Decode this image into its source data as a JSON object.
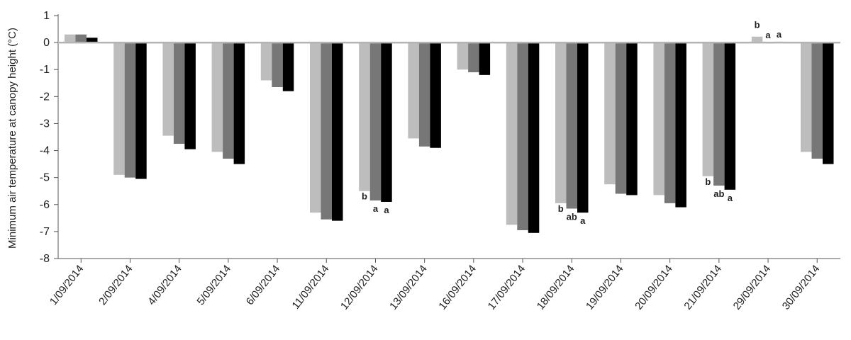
{
  "chart_data": {
    "type": "bar",
    "ylabel": "Minimum air temperature at canopy height (°C)",
    "xlabel": "",
    "title": "",
    "ylim": [
      -8,
      1
    ],
    "yticks": [
      1,
      0,
      -1,
      -2,
      -3,
      -4,
      -5,
      -6,
      -7,
      -8
    ],
    "grid": false,
    "legend": "none",
    "categories": [
      "1/09/2014",
      "2/09/2014",
      "4/09/2014",
      "5/09/2014",
      "6/09/2014",
      "11/09/2014",
      "12/09/2014",
      "13/09/2014",
      "16/09/2014",
      "17/09/2014",
      "18/09/2014",
      "19/09/2014",
      "20/09/2014",
      "21/09/2014",
      "29/09/2014",
      "30/09/2014"
    ],
    "series": [
      {
        "color": "#bdbdbd",
        "values": [
          0.3,
          -4.9,
          -3.45,
          -4.05,
          -1.4,
          -6.3,
          -5.5,
          -3.55,
          -1.0,
          -6.75,
          -5.95,
          -5.25,
          -5.65,
          -4.95,
          0.22,
          -4.05
        ]
      },
      {
        "color": "#777777",
        "values": [
          0.3,
          -5.0,
          -3.75,
          -4.3,
          -1.65,
          -6.55,
          -5.85,
          -3.85,
          -1.1,
          -6.95,
          -6.15,
          -5.6,
          -5.95,
          -5.3,
          0.0,
          -4.3
        ]
      },
      {
        "color": "#000000",
        "values": [
          0.18,
          -5.05,
          -3.95,
          -4.5,
          -1.8,
          -6.6,
          -5.9,
          -3.9,
          -1.2,
          -7.05,
          -6.3,
          -5.65,
          -6.1,
          -5.45,
          0.03,
          -4.5
        ]
      }
    ],
    "annotations": [
      {
        "category": "12/09/2014",
        "labels": [
          "b",
          "a",
          "a"
        ]
      },
      {
        "category": "18/09/2014",
        "labels": [
          "b",
          "ab",
          "a"
        ]
      },
      {
        "category": "21/09/2014",
        "labels": [
          "b",
          "ab",
          "a"
        ]
      },
      {
        "category": "29/09/2014",
        "labels": [
          "b",
          "a",
          "a"
        ]
      }
    ]
  }
}
